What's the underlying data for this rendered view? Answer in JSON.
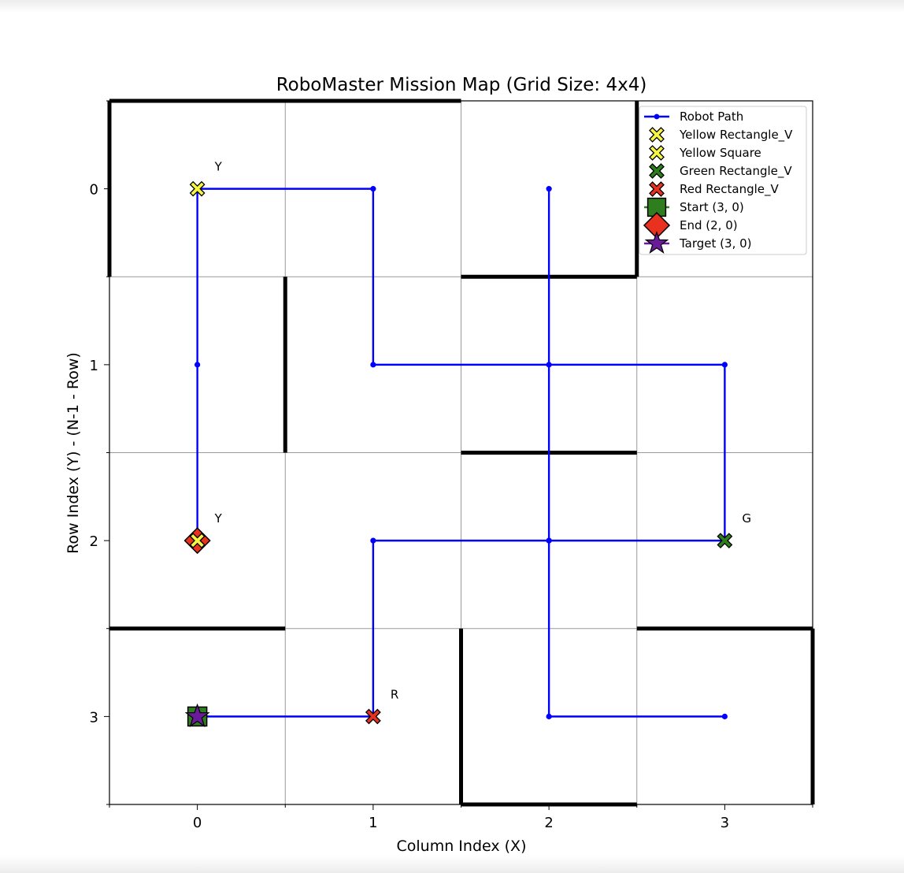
{
  "chart_data": {
    "type": "scatter",
    "title": "RoboMaster Mission Map (Grid Size: 4x4)",
    "xlabel": "Column Index (X)",
    "ylabel": "Row Index (Y) - (N-1 - Row)",
    "xlim": [
      -0.5,
      3.5
    ],
    "ylim": [
      3.5,
      -0.5
    ],
    "xticks": [
      "0",
      "1",
      "2",
      "3"
    ],
    "yticks": [
      "0",
      "1",
      "2",
      "3"
    ],
    "grid": true,
    "legend_position": "top-right",
    "colors": {
      "path": "#0000ff",
      "yellow": "#f5f542",
      "green": "#2e7d1e",
      "red": "#e8311e",
      "purple": "#6a1b9a",
      "wall": "#000000",
      "grid": "#999999"
    },
    "robot_path": {
      "name": "Robot Path",
      "points": [
        [
          0,
          3
        ],
        [
          1,
          3
        ],
        [
          1,
          2
        ],
        [
          2,
          2
        ],
        [
          3,
          2
        ],
        [
          3,
          1
        ],
        [
          2,
          1
        ],
        [
          1,
          1
        ],
        [
          1,
          0
        ],
        [
          0,
          0
        ],
        [
          0,
          1
        ],
        [
          0,
          2
        ],
        [
          2,
          0
        ],
        [
          2,
          2
        ],
        [
          2,
          3
        ],
        [
          3,
          3
        ]
      ]
    },
    "markers": [
      {
        "name": "Yellow Rectangle_V",
        "x": 0,
        "y": 0,
        "shape": "x",
        "color": "#f5f542",
        "label": "Y"
      },
      {
        "name": "Yellow Square",
        "x": 0,
        "y": 2,
        "shape": "x",
        "color": "#f5f542",
        "label": "Y"
      },
      {
        "name": "Green Rectangle_V",
        "x": 3,
        "y": 2,
        "shape": "x",
        "color": "#2e7d1e",
        "label": "G"
      },
      {
        "name": "Red Rectangle_V",
        "x": 1,
        "y": 3,
        "shape": "x",
        "color": "#e8311e",
        "label": "R"
      },
      {
        "name": "Start (3, 0)",
        "x": 0,
        "y": 3,
        "shape": "square",
        "color": "#2e7d1e",
        "label": ""
      },
      {
        "name": "End (2, 0)",
        "x": 0,
        "y": 2,
        "shape": "diamond",
        "color": "#e8311e",
        "label": ""
      },
      {
        "name": "Target (3, 0)",
        "x": 0,
        "y": 3,
        "shape": "star",
        "color": "#6a1b9a",
        "label": ""
      }
    ],
    "walls": [
      [
        [
          -0.5,
          -0.5
        ],
        [
          1.5,
          -0.5
        ]
      ],
      [
        [
          -0.5,
          -0.5
        ],
        [
          -0.5,
          0.5
        ]
      ],
      [
        [
          2.5,
          -0.5
        ],
        [
          2.5,
          0.5
        ]
      ],
      [
        [
          1.5,
          0.5
        ],
        [
          2.5,
          0.5
        ]
      ],
      [
        [
          0.5,
          0.5
        ],
        [
          0.5,
          1.5
        ]
      ],
      [
        [
          1.5,
          1.5
        ],
        [
          2.5,
          1.5
        ]
      ],
      [
        [
          -0.5,
          2.5
        ],
        [
          0.5,
          2.5
        ]
      ],
      [
        [
          2.5,
          2.5
        ],
        [
          3.5,
          2.5
        ]
      ],
      [
        [
          1.5,
          2.5
        ],
        [
          1.5,
          3.5
        ]
      ],
      [
        [
          1.5,
          3.5
        ],
        [
          2.5,
          3.5
        ]
      ],
      [
        [
          3.5,
          2.5
        ],
        [
          3.5,
          3.5
        ]
      ]
    ],
    "legend": [
      {
        "label": "Robot Path",
        "kind": "line",
        "color": "#0000ff"
      },
      {
        "label": "Yellow Rectangle_V",
        "kind": "x",
        "color": "#f5f542"
      },
      {
        "label": "Yellow Square",
        "kind": "x",
        "color": "#f5f542"
      },
      {
        "label": "Green Rectangle_V",
        "kind": "x",
        "color": "#2e7d1e"
      },
      {
        "label": "Red Rectangle_V",
        "kind": "x",
        "color": "#e8311e"
      },
      {
        "label": "Start (3, 0)",
        "kind": "square",
        "color": "#2e7d1e"
      },
      {
        "label": "End (2, 0)",
        "kind": "diamond",
        "color": "#e8311e"
      },
      {
        "label": "Target (3, 0)",
        "kind": "star",
        "color": "#6a1b9a"
      }
    ]
  }
}
